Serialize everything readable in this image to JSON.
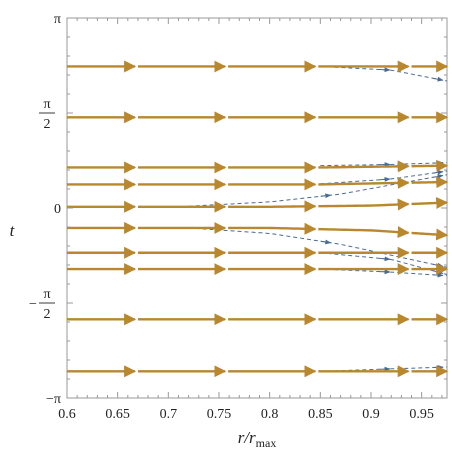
{
  "chart_data": {
    "type": "line",
    "xlabel": "r/r_max",
    "ylabel": "t",
    "xlim": [
      0.6,
      0.975
    ],
    "ylim": [
      -3.14159,
      3.14159
    ],
    "x_ticks": [
      0.6,
      0.65,
      0.7,
      0.75,
      0.8,
      0.85,
      0.9,
      0.95
    ],
    "x_tick_labels": [
      "0.6",
      "0.65",
      "0.7",
      "0.75",
      "0.8",
      "0.85",
      "0.9",
      "0.95"
    ],
    "y_ticks": [
      {
        "value": 3.14159,
        "numerator": "π",
        "sign": "",
        "fraction": false
      },
      {
        "value": 1.5708,
        "numerator": "π",
        "sign": "",
        "fraction": true,
        "denominator": "2"
      },
      {
        "value": 0,
        "numerator": "0",
        "sign": "",
        "fraction": false
      },
      {
        "value": -1.5708,
        "numerator": "π",
        "sign": "−",
        "fraction": true,
        "denominator": "2"
      },
      {
        "value": -3.14159,
        "numerator": "π",
        "sign": "−",
        "fraction": false
      }
    ],
    "colors": {
      "solid": "#b8872e",
      "dashed": "#4a6a96",
      "frame": "#999999"
    },
    "solid_segments_x": [
      [
        0.6,
        0.667
      ],
      [
        0.67,
        0.756
      ],
      [
        0.759,
        0.845
      ],
      [
        0.848,
        0.937
      ],
      [
        0.94,
        0.975
      ]
    ],
    "series": [
      {
        "style": "solid",
        "points": [
          [
            0.6,
            2.34
          ],
          [
            0.975,
            2.34
          ]
        ]
      },
      {
        "style": "solid",
        "points": [
          [
            0.6,
            1.5
          ],
          [
            0.975,
            1.5
          ]
        ]
      },
      {
        "style": "solid",
        "points": [
          [
            0.6,
            0.67
          ],
          [
            0.85,
            0.67
          ],
          [
            0.975,
            0.7
          ]
        ]
      },
      {
        "style": "solid",
        "points": [
          [
            0.6,
            0.39
          ],
          [
            0.85,
            0.39
          ],
          [
            0.975,
            0.43
          ]
        ]
      },
      {
        "style": "solid",
        "points": [
          [
            0.6,
            0.02
          ],
          [
            0.8,
            0.02
          ],
          [
            0.9,
            0.04
          ],
          [
            0.975,
            0.09
          ]
        ]
      },
      {
        "style": "solid",
        "points": [
          [
            0.6,
            -0.33
          ],
          [
            0.8,
            -0.33
          ],
          [
            0.9,
            -0.37
          ],
          [
            0.975,
            -0.45
          ]
        ]
      },
      {
        "style": "solid",
        "points": [
          [
            0.6,
            -0.74
          ],
          [
            0.975,
            -0.74
          ]
        ]
      },
      {
        "style": "solid",
        "points": [
          [
            0.6,
            -1.01
          ],
          [
            0.975,
            -1.01
          ]
        ]
      },
      {
        "style": "solid",
        "points": [
          [
            0.6,
            -1.84
          ],
          [
            0.975,
            -1.84
          ]
        ]
      },
      {
        "style": "solid",
        "points": [
          [
            0.6,
            -2.7
          ],
          [
            0.975,
            -2.7
          ]
        ]
      },
      {
        "style": "dashed",
        "points": [
          [
            0.85,
            2.34
          ],
          [
            0.92,
            2.28
          ],
          [
            0.975,
            2.1
          ]
        ]
      },
      {
        "style": "dashed",
        "points": [
          [
            0.85,
            0.7
          ],
          [
            0.92,
            0.72
          ],
          [
            0.975,
            0.75
          ]
        ]
      },
      {
        "style": "dashed",
        "points": [
          [
            0.85,
            0.4
          ],
          [
            0.92,
            0.48
          ],
          [
            0.975,
            0.61
          ]
        ]
      },
      {
        "style": "dashed",
        "points": [
          [
            0.72,
            0.03
          ],
          [
            0.8,
            0.1
          ],
          [
            0.87,
            0.23
          ],
          [
            0.975,
            0.55
          ]
        ]
      },
      {
        "style": "dashed",
        "points": [
          [
            0.72,
            -0.33
          ],
          [
            0.8,
            -0.42
          ],
          [
            0.87,
            -0.6
          ],
          [
            0.975,
            -0.98
          ]
        ]
      },
      {
        "style": "dashed",
        "points": [
          [
            0.85,
            -0.74
          ],
          [
            0.92,
            -0.85
          ],
          [
            0.975,
            -1.1
          ]
        ]
      },
      {
        "style": "dashed",
        "points": [
          [
            0.85,
            -1.01
          ],
          [
            0.92,
            -1.06
          ],
          [
            0.975,
            -1.12
          ]
        ]
      },
      {
        "style": "dashed",
        "points": [
          [
            0.85,
            -2.7
          ],
          [
            0.92,
            -2.66
          ],
          [
            0.975,
            -2.63
          ]
        ]
      }
    ],
    "grid": false
  }
}
